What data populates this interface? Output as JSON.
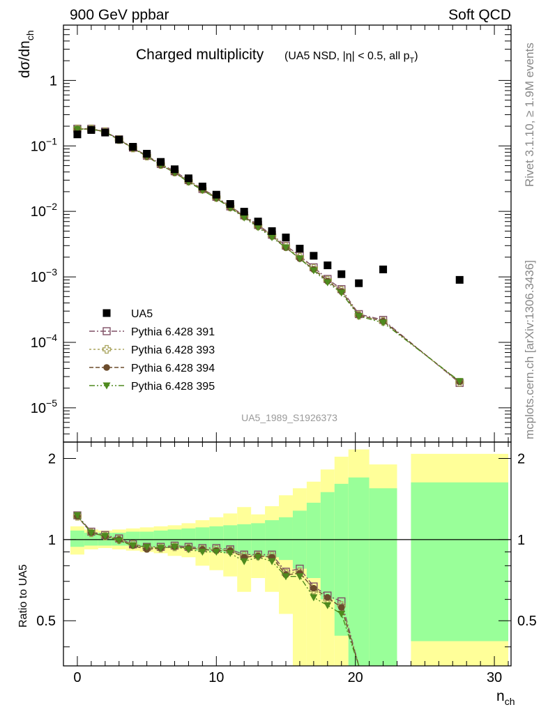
{
  "header": {
    "left": "900 GeV ppbar",
    "right": "Soft QCD"
  },
  "side_text": {
    "rivet": "Rivet 3.1.10, ≥ 1.9M events",
    "mcplots": "mcplots.cern.ch [arXiv:1306.3436]"
  },
  "chart_data": {
    "type": "scatter",
    "title": "Charged multiplicity",
    "subtitle": {
      "pre": "(UA5 NSD, |η| < 0.5, all p",
      "sub": "T",
      "post": ")"
    },
    "analysis_id": "UA5_1989_S1926373",
    "ylabel": {
      "main": "dσ/dn",
      "sub": "ch"
    },
    "xlabel": {
      "main": "n",
      "sub": "ch"
    },
    "ratio_ylabel": "Ratio to UA5",
    "xlim": [
      -1,
      31.2
    ],
    "ylim": [
      3e-06,
      7
    ],
    "yscale": "log",
    "ratio_ylim": [
      0.34,
      2.3
    ],
    "x_ticks": [
      "0",
      "10",
      "20",
      "30"
    ],
    "y_ticks": [
      {
        "base": "1",
        "exp": ""
      },
      {
        "base": "10",
        "exp": "−1"
      },
      {
        "base": "10",
        "exp": "−2"
      },
      {
        "base": "10",
        "exp": "−3"
      },
      {
        "base": "10",
        "exp": "−4"
      },
      {
        "base": "10",
        "exp": "−5"
      }
    ],
    "ratio_y_ticks": [
      "2",
      "1",
      "0.5"
    ],
    "legend_position": "middle-left",
    "colors": {
      "data": "#000000",
      "s391": "#7f4f65",
      "s393": "#a8a35c",
      "s394": "#6b4c2c",
      "s395": "#4e8a1e",
      "band_inner": "#99ff99",
      "band_outer": "#ffff99"
    },
    "data": {
      "name": "UA5",
      "x": [
        0,
        1,
        2,
        3,
        4,
        5,
        6,
        7,
        8,
        9,
        10,
        11,
        12,
        13,
        14,
        15,
        16,
        17,
        18,
        19,
        20.25,
        22,
        27.5
      ],
      "y": [
        0.15,
        0.175,
        0.16,
        0.125,
        0.097,
        0.076,
        0.057,
        0.044,
        0.032,
        0.024,
        0.018,
        0.013,
        0.0099,
        0.007,
        0.005,
        0.004,
        0.0027,
        0.0021,
        0.0015,
        0.0011,
        0.0008,
        0.0013,
        0.0009
      ]
    },
    "bands": [
      {
        "x0": -0.5,
        "x1": 0.5,
        "inner": [
          0.94,
          1.08
        ],
        "outer": [
          0.88,
          1.12
        ]
      },
      {
        "x0": 0.5,
        "x1": 1.5,
        "inner": [
          0.95,
          1.06
        ],
        "outer": [
          0.92,
          1.09
        ]
      },
      {
        "x0": 1.5,
        "x1": 2.5,
        "inner": [
          0.95,
          1.06
        ],
        "outer": [
          0.93,
          1.08
        ]
      },
      {
        "x0": 2.5,
        "x1": 3.5,
        "inner": [
          0.95,
          1.06
        ],
        "outer": [
          0.92,
          1.09
        ]
      },
      {
        "x0": 3.5,
        "x1": 4.5,
        "inner": [
          0.95,
          1.07
        ],
        "outer": [
          0.91,
          1.1
        ]
      },
      {
        "x0": 4.5,
        "x1": 5.5,
        "inner": [
          0.94,
          1.07
        ],
        "outer": [
          0.9,
          1.11
        ]
      },
      {
        "x0": 5.5,
        "x1": 6.5,
        "inner": [
          0.94,
          1.08
        ],
        "outer": [
          0.89,
          1.12
        ]
      },
      {
        "x0": 6.5,
        "x1": 7.5,
        "inner": [
          0.93,
          1.09
        ],
        "outer": [
          0.87,
          1.13
        ]
      },
      {
        "x0": 7.5,
        "x1": 8.5,
        "inner": [
          0.93,
          1.1
        ],
        "outer": [
          0.86,
          1.15
        ]
      },
      {
        "x0": 8.5,
        "x1": 9.5,
        "inner": [
          0.91,
          1.11
        ],
        "outer": [
          0.8,
          1.18
        ]
      },
      {
        "x0": 9.5,
        "x1": 10.5,
        "inner": [
          0.9,
          1.12
        ],
        "outer": [
          0.77,
          1.21
        ]
      },
      {
        "x0": 10.5,
        "x1": 11.5,
        "inner": [
          0.89,
          1.13
        ],
        "outer": [
          0.73,
          1.25
        ]
      },
      {
        "x0": 11.5,
        "x1": 12.5,
        "inner": [
          0.88,
          1.14
        ],
        "outer": [
          0.64,
          1.32
        ]
      },
      {
        "x0": 12.5,
        "x1": 13.5,
        "inner": [
          0.87,
          1.15
        ],
        "outer": [
          0.72,
          1.24
        ]
      },
      {
        "x0": 13.5,
        "x1": 14.5,
        "inner": [
          0.86,
          1.18
        ],
        "outer": [
          0.64,
          1.33
        ]
      },
      {
        "x0": 14.5,
        "x1": 15.5,
        "inner": [
          0.84,
          1.21
        ],
        "outer": [
          0.53,
          1.46
        ]
      },
      {
        "x0": 15.5,
        "x1": 16.5,
        "inner": [
          0.78,
          1.28
        ],
        "outer": [
          0.34,
          1.55
        ]
      },
      {
        "x0": 16.5,
        "x1": 17.5,
        "inner": [
          0.72,
          1.37
        ],
        "outer": [
          0.34,
          1.64
        ]
      },
      {
        "x0": 17.5,
        "x1": 18.5,
        "inner": [
          0.6,
          1.5
        ],
        "outer": [
          0.34,
          1.82
        ]
      },
      {
        "x0": 18.5,
        "x1": 19.5,
        "inner": [
          0.44,
          1.61
        ],
        "outer": [
          0.34,
          2.03
        ]
      },
      {
        "x0": 19.5,
        "x1": 21.0,
        "inner": [
          0.34,
          1.7
        ],
        "outer": [
          0.34,
          2.16
        ]
      },
      {
        "x0": 21.0,
        "x1": 23.0,
        "inner": [
          0.34,
          1.55
        ],
        "outer": [
          0.34,
          1.9
        ]
      },
      {
        "x0": 24.0,
        "x1": 31.0,
        "inner": [
          0.42,
          1.63
        ],
        "outer": [
          0.34,
          2.08
        ]
      }
    ],
    "series": [
      {
        "name": "Pythia 6.428 391",
        "marker": "open-square",
        "dash": "8,3,2,3",
        "x": [
          0,
          1,
          2,
          3,
          4,
          5,
          6,
          7,
          8,
          9,
          10,
          11,
          12,
          13,
          14,
          15,
          16,
          17,
          18,
          19,
          20.25,
          22,
          27.5
        ],
        "y": [
          0.183,
          0.183,
          0.166,
          0.126,
          0.094,
          0.071,
          0.053,
          0.041,
          0.03,
          0.022,
          0.0167,
          0.0119,
          0.0087,
          0.0062,
          0.0044,
          0.003,
          0.0021,
          0.0014,
          0.00093,
          0.00065,
          0.00027,
          0.00022,
          2.4e-05
        ],
        "ratio": [
          1.23,
          1.07,
          1.04,
          1.01,
          0.96,
          0.94,
          0.94,
          0.95,
          0.94,
          0.93,
          0.93,
          0.92,
          0.88,
          0.88,
          0.88,
          0.76,
          0.78,
          0.67,
          0.62,
          0.59,
          0.32
        ]
      },
      {
        "name": "Pythia 6.428 393",
        "marker": "open-cross",
        "dash": "3,3",
        "x": [
          0,
          1,
          2,
          3,
          4,
          5,
          6,
          7,
          8,
          9,
          10,
          11,
          12,
          13,
          14,
          15,
          16,
          17,
          18,
          19,
          20.25,
          22,
          27.5
        ],
        "y": [
          0.182,
          0.182,
          0.165,
          0.125,
          0.093,
          0.07,
          0.052,
          0.04,
          0.029,
          0.0218,
          0.0163,
          0.0117,
          0.0085,
          0.006,
          0.0043,
          0.0029,
          0.002,
          0.00135,
          0.00089,
          0.00062,
          0.00026,
          0.00021,
          2.45e-05
        ],
        "ratio": [
          1.22,
          1.06,
          1.03,
          1.0,
          0.96,
          0.93,
          0.93,
          0.94,
          0.93,
          0.92,
          0.92,
          0.91,
          0.87,
          0.87,
          0.87,
          0.75,
          0.76,
          0.65,
          0.6,
          0.57,
          0.32
        ]
      },
      {
        "name": "Pythia 6.428 394",
        "marker": "filled-circle",
        "dash": "6,3",
        "x": [
          0,
          1,
          2,
          3,
          4,
          5,
          6,
          7,
          8,
          9,
          10,
          11,
          12,
          13,
          14,
          15,
          16,
          17,
          18,
          19,
          20.25,
          22,
          27.5
        ],
        "y": [
          0.181,
          0.181,
          0.164,
          0.124,
          0.092,
          0.069,
          0.051,
          0.039,
          0.0285,
          0.0215,
          0.016,
          0.0115,
          0.0083,
          0.0059,
          0.0042,
          0.0028,
          0.0019,
          0.0013,
          0.00086,
          0.0006,
          0.00026,
          0.00021,
          2.5e-05
        ],
        "ratio": [
          1.22,
          1.06,
          1.03,
          1.0,
          0.95,
          0.92,
          0.93,
          0.94,
          0.93,
          0.92,
          0.91,
          0.91,
          0.86,
          0.87,
          0.86,
          0.74,
          0.75,
          0.66,
          0.61,
          0.56,
          0.31
        ]
      },
      {
        "name": "Pythia 6.428 395",
        "marker": "filled-triangle-down",
        "dash": "8,3,2,3,2,3",
        "x": [
          0,
          1,
          2,
          3,
          4,
          5,
          6,
          7,
          8,
          9,
          10,
          11,
          12,
          13,
          14,
          15,
          16,
          17,
          18,
          19,
          20.25,
          22,
          27.5
        ],
        "y": [
          0.18,
          0.18,
          0.163,
          0.123,
          0.092,
          0.07,
          0.051,
          0.039,
          0.028,
          0.021,
          0.0158,
          0.0113,
          0.008,
          0.0057,
          0.004,
          0.0028,
          0.0019,
          0.00125,
          0.00082,
          0.00057,
          0.00025,
          0.0002,
          2.55e-05
        ],
        "ratio": [
          1.23,
          1.06,
          1.03,
          0.99,
          0.95,
          0.94,
          0.93,
          0.94,
          0.92,
          0.9,
          0.9,
          0.89,
          0.83,
          0.86,
          0.83,
          0.73,
          0.73,
          0.61,
          0.57,
          0.53,
          0.31
        ]
      }
    ]
  }
}
